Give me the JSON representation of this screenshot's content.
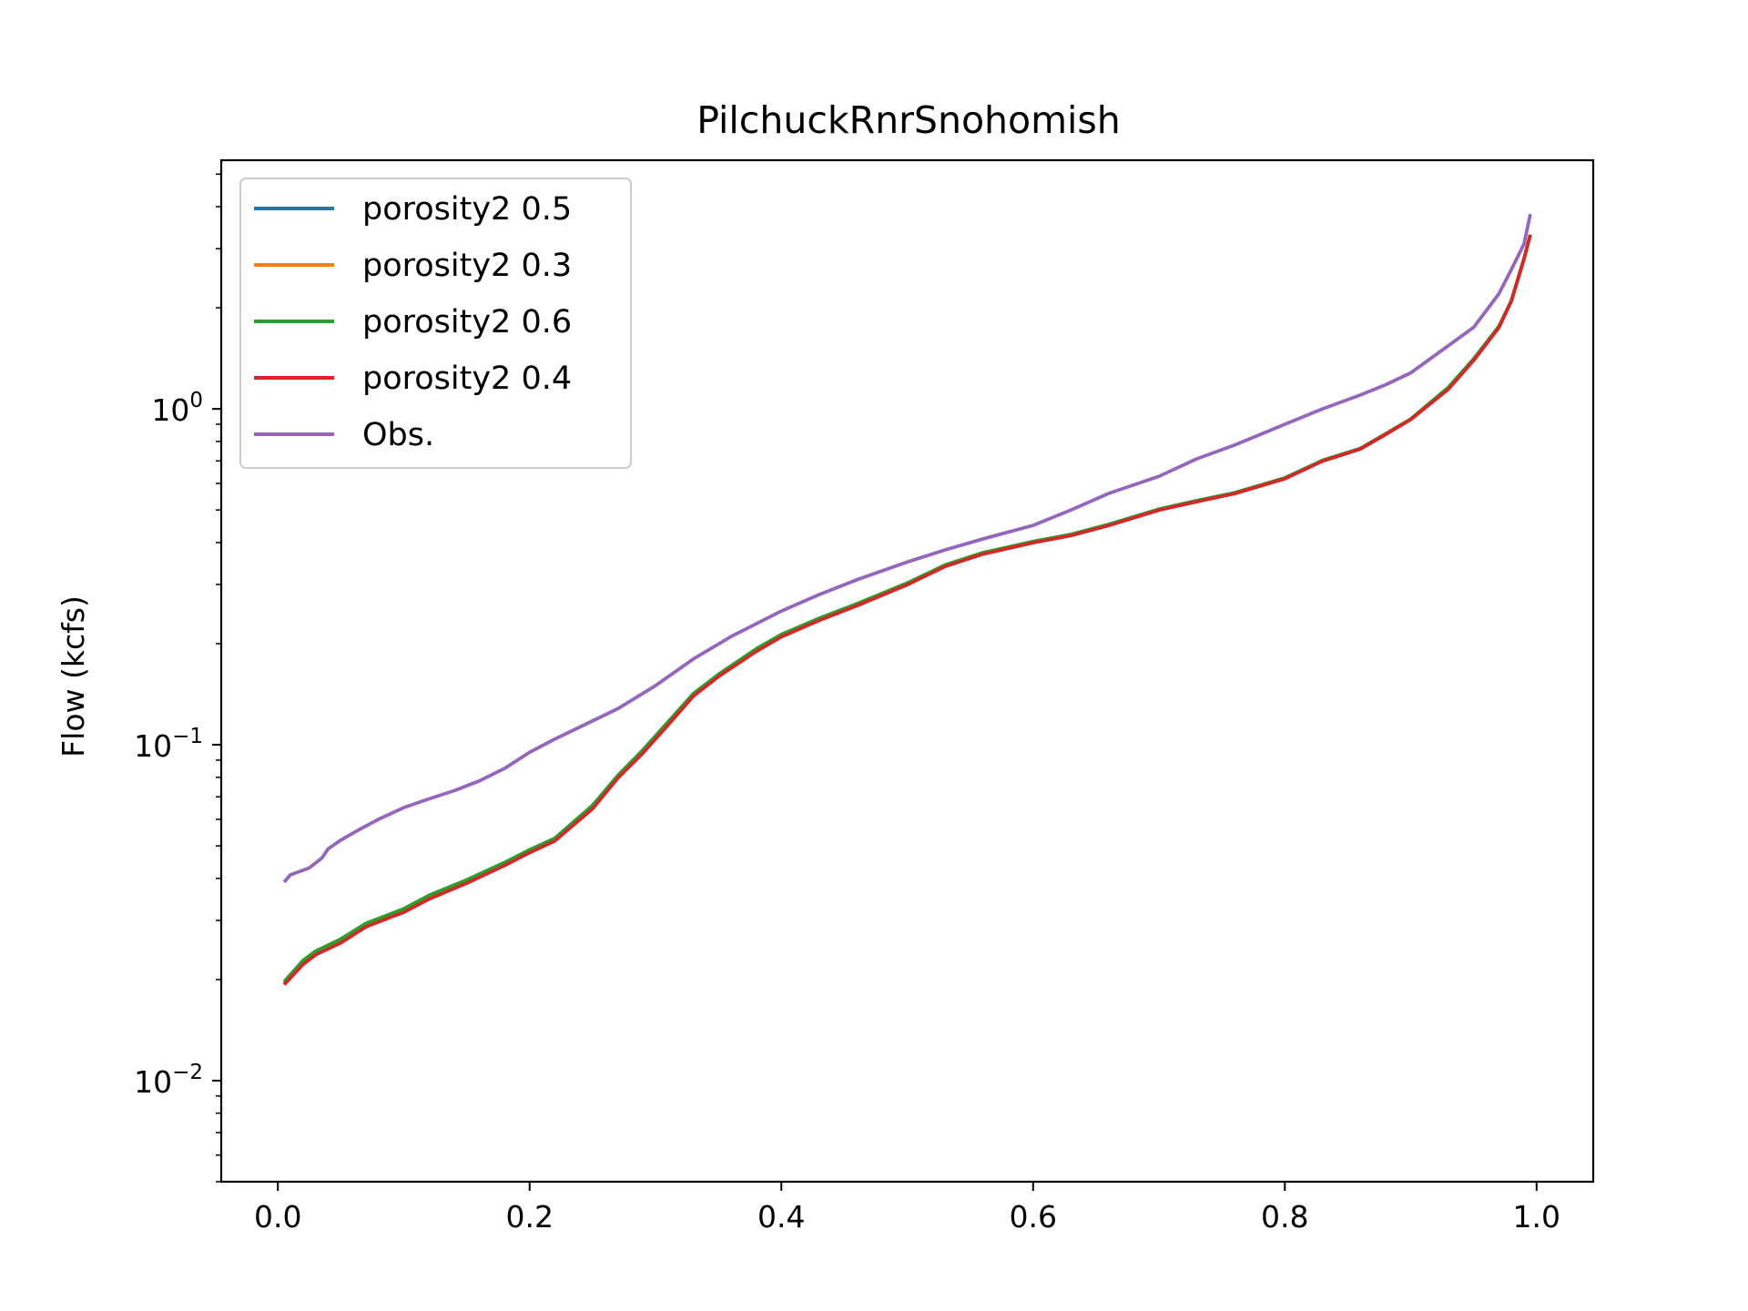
{
  "chart_data": {
    "type": "line",
    "title": "PilchuckRnrSnohomish",
    "xlabel": "",
    "ylabel": "Flow (kcfs)",
    "xlim": [
      -0.045,
      1.045
    ],
    "ylim": [
      0.005,
      5.5
    ],
    "yscale": "log",
    "x_ticks": [
      0.0,
      0.2,
      0.4,
      0.6,
      0.8,
      1.0
    ],
    "x_tick_labels": [
      "0.0",
      "0.2",
      "0.4",
      "0.6",
      "0.8",
      "1.0"
    ],
    "y_ticks": [
      {
        "value": 1,
        "base": "10",
        "exp": "0"
      },
      {
        "value": 0.1,
        "base": "10",
        "exp": "−1"
      },
      {
        "value": 0.01,
        "base": "10",
        "exp": "−2"
      }
    ],
    "grid": false,
    "legend_position": "upper-left",
    "series": [
      {
        "name": "porosity2 0.5",
        "color": "#1f77b4",
        "x": [
          0.005,
          0.02,
          0.03,
          0.05,
          0.07,
          0.09,
          0.1,
          0.12,
          0.15,
          0.18,
          0.2,
          0.22,
          0.25,
          0.27,
          0.29,
          0.31,
          0.33,
          0.35,
          0.38,
          0.4,
          0.43,
          0.46,
          0.5,
          0.53,
          0.56,
          0.6,
          0.63,
          0.66,
          0.7,
          0.73,
          0.76,
          0.8,
          0.83,
          0.86,
          0.88,
          0.9,
          0.93,
          0.95,
          0.97,
          0.98,
          0.99,
          0.995
        ],
        "y": [
          0.0195,
          0.0225,
          0.024,
          0.026,
          0.029,
          0.031,
          0.032,
          0.035,
          0.039,
          0.044,
          0.048,
          0.052,
          0.065,
          0.08,
          0.095,
          0.115,
          0.14,
          0.16,
          0.19,
          0.21,
          0.235,
          0.26,
          0.3,
          0.34,
          0.37,
          0.4,
          0.42,
          0.45,
          0.5,
          0.53,
          0.56,
          0.62,
          0.7,
          0.76,
          0.84,
          0.93,
          1.15,
          1.4,
          1.75,
          2.1,
          2.8,
          3.3
        ]
      },
      {
        "name": "porosity2 0.3",
        "color": "#ff7f0e",
        "x": [
          0.005,
          0.02,
          0.03,
          0.05,
          0.07,
          0.09,
          0.1,
          0.12,
          0.15,
          0.18,
          0.2,
          0.22,
          0.25,
          0.27,
          0.29,
          0.31,
          0.33,
          0.35,
          0.38,
          0.4,
          0.43,
          0.46,
          0.5,
          0.53,
          0.56,
          0.6,
          0.63,
          0.66,
          0.7,
          0.73,
          0.76,
          0.8,
          0.83,
          0.86,
          0.88,
          0.9,
          0.93,
          0.95,
          0.97,
          0.98,
          0.99,
          0.995
        ],
        "y": [
          0.0195,
          0.0225,
          0.024,
          0.026,
          0.029,
          0.031,
          0.032,
          0.035,
          0.039,
          0.044,
          0.048,
          0.052,
          0.065,
          0.08,
          0.095,
          0.115,
          0.14,
          0.16,
          0.19,
          0.21,
          0.235,
          0.26,
          0.3,
          0.34,
          0.37,
          0.4,
          0.42,
          0.45,
          0.5,
          0.53,
          0.56,
          0.62,
          0.7,
          0.76,
          0.84,
          0.93,
          1.15,
          1.4,
          1.75,
          2.1,
          2.8,
          3.3
        ]
      },
      {
        "name": "porosity2 0.6",
        "color": "#2ca02c",
        "x": [
          0.005,
          0.02,
          0.03,
          0.05,
          0.07,
          0.09,
          0.1,
          0.12,
          0.15,
          0.18,
          0.2,
          0.22,
          0.25,
          0.27,
          0.29,
          0.31,
          0.33,
          0.35,
          0.38,
          0.4,
          0.43,
          0.46,
          0.5,
          0.53,
          0.56,
          0.6,
          0.63,
          0.66,
          0.7,
          0.73,
          0.76,
          0.8,
          0.83,
          0.86,
          0.88,
          0.9,
          0.93,
          0.95,
          0.97,
          0.98,
          0.99,
          0.995
        ],
        "y": [
          0.0197,
          0.0228,
          0.0243,
          0.0264,
          0.0294,
          0.0314,
          0.0325,
          0.0356,
          0.0396,
          0.0446,
          0.0487,
          0.0527,
          0.066,
          0.081,
          0.0965,
          0.117,
          0.142,
          0.162,
          0.193,
          0.213,
          0.238,
          0.263,
          0.303,
          0.343,
          0.373,
          0.403,
          0.423,
          0.453,
          0.503,
          0.533,
          0.563,
          0.623,
          0.703,
          0.763,
          0.843,
          0.933,
          1.16,
          1.41,
          1.76,
          2.1,
          2.8,
          3.3
        ]
      },
      {
        "name": "porosity2 0.4",
        "color": "#d62728",
        "x": [
          0.005,
          0.02,
          0.03,
          0.05,
          0.07,
          0.09,
          0.1,
          0.12,
          0.15,
          0.18,
          0.2,
          0.22,
          0.25,
          0.27,
          0.29,
          0.31,
          0.33,
          0.35,
          0.38,
          0.4,
          0.43,
          0.46,
          0.5,
          0.53,
          0.56,
          0.6,
          0.63,
          0.66,
          0.7,
          0.73,
          0.76,
          0.8,
          0.83,
          0.86,
          0.88,
          0.9,
          0.93,
          0.95,
          0.97,
          0.98,
          0.99,
          0.995
        ],
        "y": [
          0.0193,
          0.0222,
          0.0237,
          0.0257,
          0.0287,
          0.0307,
          0.0317,
          0.0347,
          0.0387,
          0.0437,
          0.0477,
          0.0517,
          0.0645,
          0.0795,
          0.0945,
          0.1145,
          0.1395,
          0.1595,
          0.1895,
          0.2095,
          0.2345,
          0.2595,
          0.2995,
          0.3395,
          0.3695,
          0.3995,
          0.4195,
          0.4495,
          0.4995,
          0.5295,
          0.5595,
          0.6195,
          0.6995,
          0.7595,
          0.8395,
          0.9295,
          1.145,
          1.395,
          1.745,
          2.095,
          2.8,
          3.3
        ]
      },
      {
        "name": "Obs.",
        "color": "#9467bd",
        "x": [
          0.005,
          0.01,
          0.025,
          0.035,
          0.04,
          0.05,
          0.065,
          0.08,
          0.1,
          0.12,
          0.14,
          0.16,
          0.18,
          0.2,
          0.22,
          0.24,
          0.27,
          0.3,
          0.33,
          0.36,
          0.4,
          0.43,
          0.46,
          0.5,
          0.53,
          0.56,
          0.6,
          0.63,
          0.66,
          0.7,
          0.73,
          0.76,
          0.8,
          0.83,
          0.86,
          0.88,
          0.9,
          0.92,
          0.95,
          0.97,
          0.98,
          0.99,
          0.995
        ],
        "y": [
          0.039,
          0.041,
          0.043,
          0.046,
          0.049,
          0.052,
          0.056,
          0.06,
          0.065,
          0.069,
          0.073,
          0.078,
          0.085,
          0.095,
          0.104,
          0.113,
          0.128,
          0.15,
          0.18,
          0.21,
          0.25,
          0.28,
          0.31,
          0.35,
          0.38,
          0.41,
          0.45,
          0.5,
          0.56,
          0.63,
          0.71,
          0.78,
          0.9,
          1.0,
          1.1,
          1.18,
          1.28,
          1.45,
          1.75,
          2.2,
          2.6,
          3.1,
          3.8
        ]
      }
    ]
  }
}
